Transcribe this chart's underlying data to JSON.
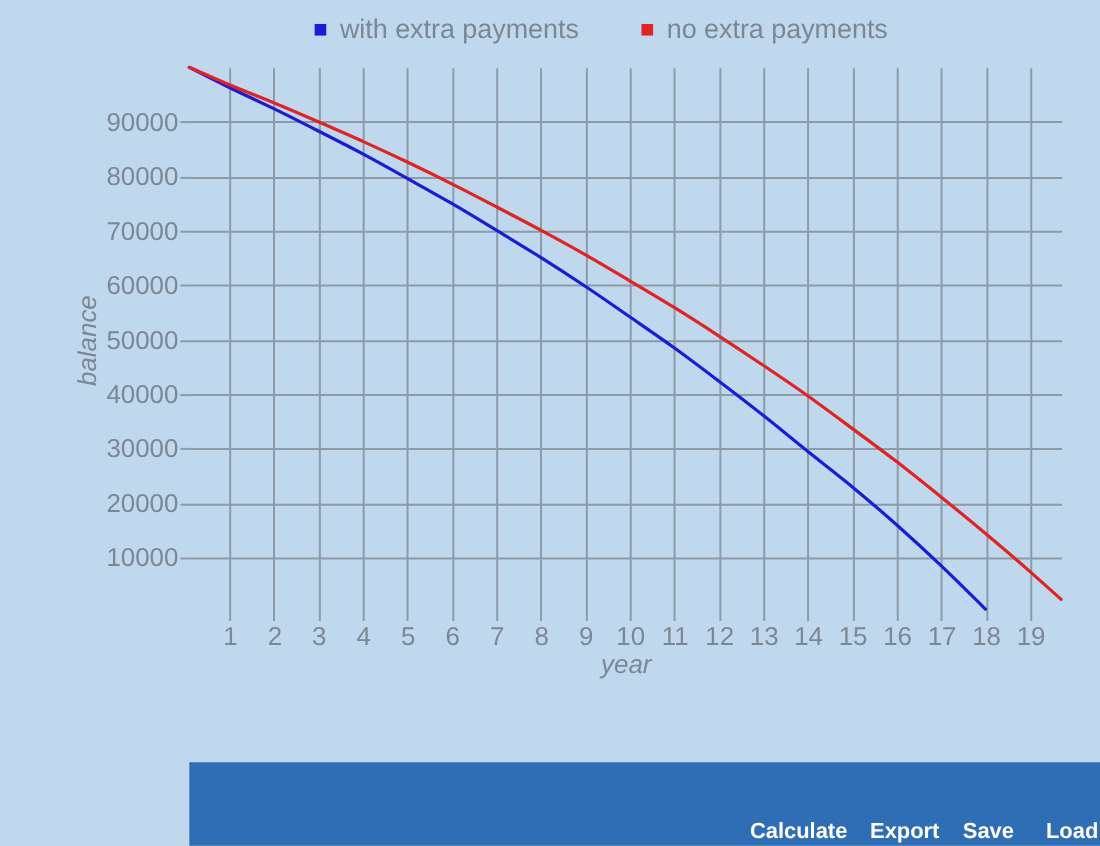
{
  "chart_data": {
    "type": "line",
    "xlabel": "year",
    "ylabel": "balance",
    "xlim": [
      0.1,
      19.7
    ],
    "ylim": [
      0,
      100000
    ],
    "xticks": [
      1,
      2,
      3,
      4,
      5,
      6,
      7,
      8,
      9,
      10,
      11,
      12,
      13,
      14,
      15,
      16,
      17,
      18,
      19
    ],
    "yticks": [
      10000,
      20000,
      30000,
      40000,
      50000,
      60000,
      70000,
      80000,
      90000
    ],
    "grid": true,
    "legend": "top",
    "series": [
      {
        "name": "with extra payments",
        "color": "#1c1cd4",
        "x": [
          0.1,
          1,
          2,
          3,
          4,
          5,
          6,
          7,
          8,
          9,
          10,
          11,
          12,
          13,
          14,
          15,
          16,
          17,
          18
        ],
        "values": [
          100000,
          96300,
          92400,
          88300,
          84100,
          79600,
          75000,
          70100,
          65100,
          59800,
          54200,
          48500,
          42400,
          36100,
          29500,
          23000,
          16000,
          8500,
          500
        ]
      },
      {
        "name": "no extra payments",
        "color": "#e02424",
        "x": [
          0.1,
          1,
          2,
          3,
          4,
          5,
          6,
          7,
          8,
          9,
          10,
          11,
          12,
          13,
          14,
          15,
          16,
          17,
          18,
          19,
          19.7
        ],
        "values": [
          100000,
          96800,
          93500,
          90000,
          86400,
          82600,
          78600,
          74400,
          70100,
          65600,
          60800,
          55900,
          50700,
          45300,
          39700,
          33700,
          27600,
          21100,
          14400,
          7400,
          2300
        ]
      }
    ],
    "annotations": [
      "Calculate",
      "Export",
      "Save",
      "Load"
    ]
  }
}
